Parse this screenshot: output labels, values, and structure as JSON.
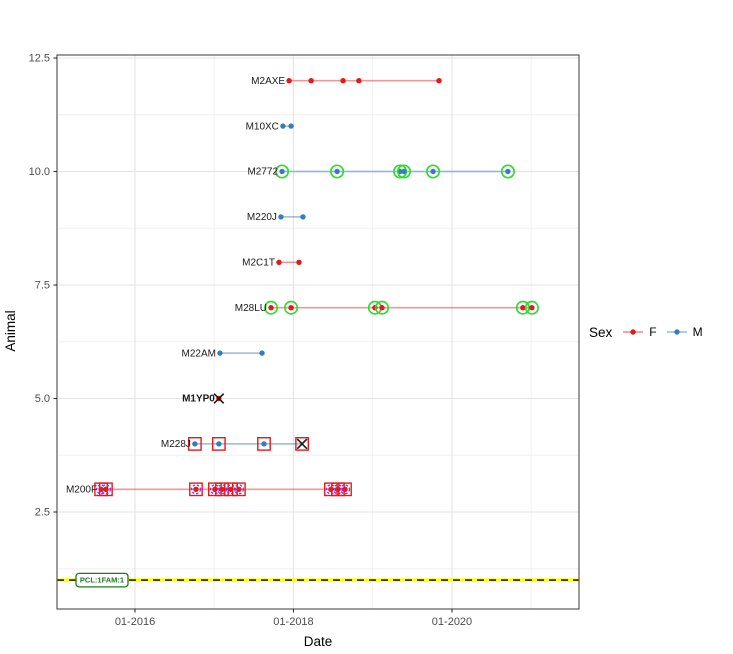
{
  "chart_data": {
    "type": "scatter",
    "title": "",
    "xlabel": "Date",
    "ylabel": "Animal",
    "grid": true,
    "x_axis": {
      "ticks": [
        {
          "label": "01-2016",
          "date": "2016-01-01"
        },
        {
          "label": "01-2018",
          "date": "2018-01-01"
        },
        {
          "label": "01-2020",
          "date": "2020-01-01"
        }
      ]
    },
    "y_axis": {
      "ticks": [
        {
          "label": "2.5",
          "value": 2.5
        },
        {
          "label": "5.0",
          "value": 5.0
        },
        {
          "label": "7.5",
          "value": 7.5
        },
        {
          "label": "10.0",
          "value": 10.0
        },
        {
          "label": "12.5",
          "value": 12.5
        }
      ],
      "range": [
        0.36,
        12.57
      ]
    },
    "legend": {
      "title": "Sex",
      "position": "right",
      "entries": [
        {
          "label": "F",
          "color": "#e31a1c"
        },
        {
          "label": "M",
          "color": "#377eb8"
        }
      ]
    },
    "reference_line": {
      "y": 1,
      "label": "PCL:1FAM:1",
      "line_color": "#ffff00",
      "dash_color": "#000000",
      "label_color": "#1f7a1f"
    },
    "style": {
      "grid_major": "#e3e3e3",
      "grid_minor": "#f0f0f0",
      "panel_border": "#595959",
      "tick_color": "#333333",
      "tick_text": "#4d4d4d",
      "green_ring": "#2fdc2f",
      "red_square": "#e31a1c",
      "purple_ring": "#a020f0",
      "x_mark": "#1a1a1a",
      "label_text": "#1a1a1a",
      "line_opacity": 0.45
    },
    "animals": [
      {
        "id": "M2AXE",
        "y": 12,
        "sex": "F",
        "marks": [
          "dot"
        ],
        "points": [
          {
            "date": "2017-12-11"
          },
          {
            "date": "2018-03-21"
          },
          {
            "date": "2018-08-16"
          },
          {
            "date": "2018-10-28"
          },
          {
            "date": "2019-11-02"
          }
        ]
      },
      {
        "id": "M10XC",
        "y": 11,
        "sex": "M",
        "marks": [
          "dot"
        ],
        "points": [
          {
            "date": "2017-11-13"
          },
          {
            "date": "2017-12-20"
          }
        ]
      },
      {
        "id": "M2772",
        "y": 10,
        "sex": "M",
        "marks": [
          "dot",
          "green-ring"
        ],
        "points": [
          {
            "date": "2017-11-09"
          },
          {
            "date": "2018-07-19"
          },
          {
            "date": "2019-05-05"
          },
          {
            "date": "2019-05-23"
          },
          {
            "date": "2019-10-05"
          },
          {
            "date": "2020-09-15"
          }
        ]
      },
      {
        "id": "M220J",
        "y": 9,
        "sex": "M",
        "marks": [
          "dot"
        ],
        "points": [
          {
            "date": "2017-11-04"
          },
          {
            "date": "2018-02-14"
          }
        ]
      },
      {
        "id": "M2C1T",
        "y": 8,
        "sex": "F",
        "marks": [
          "dot"
        ],
        "points": [
          {
            "date": "2017-10-25"
          },
          {
            "date": "2018-01-26"
          }
        ]
      },
      {
        "id": "M28LU",
        "y": 7,
        "sex": "F",
        "marks": [
          "dot",
          "green-ring"
        ],
        "points": [
          {
            "date": "2017-09-19"
          },
          {
            "date": "2017-12-20"
          },
          {
            "date": "2019-01-11"
          },
          {
            "date": "2019-02-13"
          },
          {
            "date": "2020-11-23"
          },
          {
            "date": "2021-01-04"
          }
        ]
      },
      {
        "id": "M22AM",
        "y": 6,
        "sex": "M",
        "marks": [
          "dot"
        ],
        "points": [
          {
            "date": "2017-01-27"
          },
          {
            "date": "2017-08-08"
          }
        ]
      },
      {
        "id": "M1YP0",
        "y": 5,
        "sex": "F",
        "label_bold": true,
        "marks": [
          "dot",
          "x"
        ],
        "points": [
          {
            "date": "2017-01-22"
          }
        ]
      },
      {
        "id": "M228J",
        "y": 4,
        "sex": "M",
        "marks": [
          "red-square",
          "dot"
        ],
        "points": [
          {
            "date": "2016-10-03"
          },
          {
            "date": "2017-01-22"
          },
          {
            "date": "2017-08-17"
          },
          {
            "date": "2018-02-10",
            "marks": [
              "red-square",
              "x"
            ]
          }
        ]
      },
      {
        "id": "M200F",
        "y": 3,
        "sex": "F",
        "marks": [
          "red-square",
          "dot",
          "purple-ring"
        ],
        "points": [
          {
            "date": "2015-07-27"
          },
          {
            "date": "2015-08-19"
          },
          {
            "date": "2016-10-08"
          },
          {
            "date": "2017-01-04"
          },
          {
            "date": "2017-02-06"
          },
          {
            "date": "2017-03-17"
          },
          {
            "date": "2017-04-23"
          },
          {
            "date": "2018-06-21"
          },
          {
            "date": "2018-07-23"
          },
          {
            "date": "2018-08-25"
          }
        ]
      }
    ]
  }
}
